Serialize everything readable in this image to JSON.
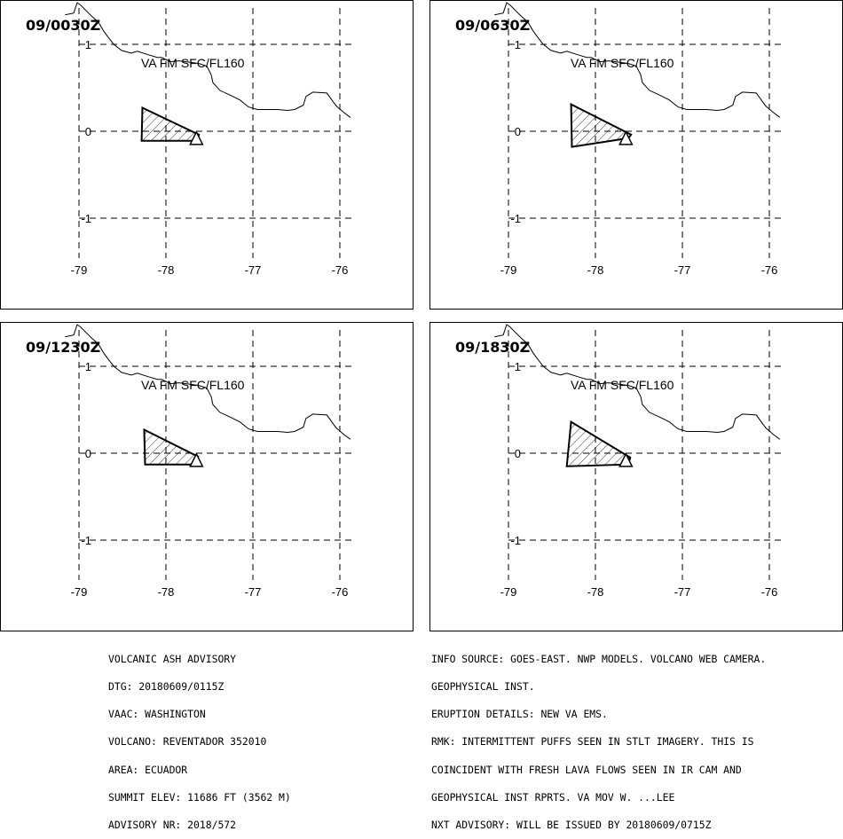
{
  "map_data": {
    "panels": [
      {
        "time": "09/0030Z",
        "label": "VA FM SFC/FL160",
        "polygon": [
          [
            -78.27,
            0.27
          ],
          [
            -77.62,
            -0.04
          ],
          [
            -77.64,
            -0.11
          ],
          [
            -78.28,
            -0.11
          ]
        ]
      },
      {
        "time": "09/0630Z",
        "label": "VA FM SFC/FL160",
        "polygon": [
          [
            -78.28,
            0.31
          ],
          [
            -77.59,
            -0.04
          ],
          [
            -77.62,
            -0.08
          ],
          [
            -78.27,
            -0.18
          ]
        ]
      },
      {
        "time": "09/1230Z",
        "label": "VA FM SFC/FL160",
        "polygon": [
          [
            -78.25,
            0.27
          ],
          [
            -77.63,
            -0.04
          ],
          [
            -77.66,
            -0.13
          ],
          [
            -78.24,
            -0.13
          ]
        ]
      },
      {
        "time": "09/1830Z",
        "label": "VA FM SFC/FL160",
        "polygon": [
          [
            -78.28,
            0.36
          ],
          [
            -77.6,
            -0.05
          ],
          [
            -77.62,
            -0.13
          ],
          [
            -78.33,
            -0.15
          ]
        ]
      }
    ],
    "volcano": {
      "lon": -77.65,
      "lat": -0.08,
      "symbol": "triangle"
    },
    "lon_ticks": [
      "-79",
      "-78",
      "-77",
      "-76"
    ],
    "lat_ticks": [
      "1",
      "0",
      "-1"
    ],
    "lon_values": [
      -79,
      -78,
      -77,
      -76
    ],
    "lat_values": [
      1,
      0,
      -1
    ],
    "coastline": [
      [
        -79.16,
        1.34
      ],
      [
        -79.06,
        1.36
      ],
      [
        -79.02,
        1.48
      ],
      [
        -78.98,
        1.45
      ],
      [
        -78.92,
        1.39
      ],
      [
        -78.85,
        1.32
      ],
      [
        -78.78,
        1.26
      ],
      [
        -78.72,
        1.16
      ],
      [
        -78.67,
        1.09
      ],
      [
        -78.6,
        1.0
      ],
      [
        -78.51,
        0.93
      ],
      [
        -78.4,
        0.9
      ],
      [
        -78.33,
        0.92
      ],
      [
        -78.2,
        0.88
      ],
      [
        -78.1,
        0.85
      ],
      [
        -78.05,
        0.85
      ],
      [
        -77.95,
        0.8
      ],
      [
        -77.85,
        0.81
      ],
      [
        -77.77,
        0.8
      ],
      [
        -77.62,
        0.78
      ],
      [
        -77.53,
        0.75
      ],
      [
        -77.48,
        0.65
      ],
      [
        -77.46,
        0.56
      ],
      [
        -77.38,
        0.47
      ],
      [
        -77.25,
        0.41
      ],
      [
        -77.15,
        0.36
      ],
      [
        -77.05,
        0.28
      ],
      [
        -76.95,
        0.25
      ],
      [
        -76.84,
        0.25
      ],
      [
        -76.72,
        0.25
      ],
      [
        -76.6,
        0.24
      ],
      [
        -76.52,
        0.25
      ],
      [
        -76.42,
        0.3
      ],
      [
        -76.39,
        0.4
      ],
      [
        -76.31,
        0.45
      ],
      [
        -76.15,
        0.44
      ],
      [
        -76.07,
        0.33
      ],
      [
        -76.04,
        0.29
      ],
      [
        -75.96,
        0.22
      ],
      [
        -75.88,
        0.16
      ]
    ]
  },
  "advisory_left": [
    "VOLCANIC ASH ADVISORY",
    "DTG: 20180609/0115Z",
    "VAAC: WASHINGTON",
    "VOLCANO: REVENTADOR 352010",
    "AREA: ECUADOR",
    "SUMMIT ELEV: 11686 FT (3562 M)",
    "ADVISORY NR: 2018/572"
  ],
  "advisory_right": [
    "INFO SOURCE: GOES-EAST. NWP MODELS. VOLCANO WEB CAMERA.",
    "GEOPHYSICAL INST.",
    "ERUPTION DETAILS: NEW VA EMS.",
    "RMK: INTERMITTENT PUFFS SEEN IN STLT IMAGERY. THIS IS",
    "COINCIDENT WITH FRESH LAVA FLOWS SEEN IN IR CAM AND",
    "GEOPHYSICAL INST RPRTS. VA MOV W. ...LEE",
    "NXT ADVISORY: WILL BE ISSUED BY 20180609/0715Z"
  ]
}
